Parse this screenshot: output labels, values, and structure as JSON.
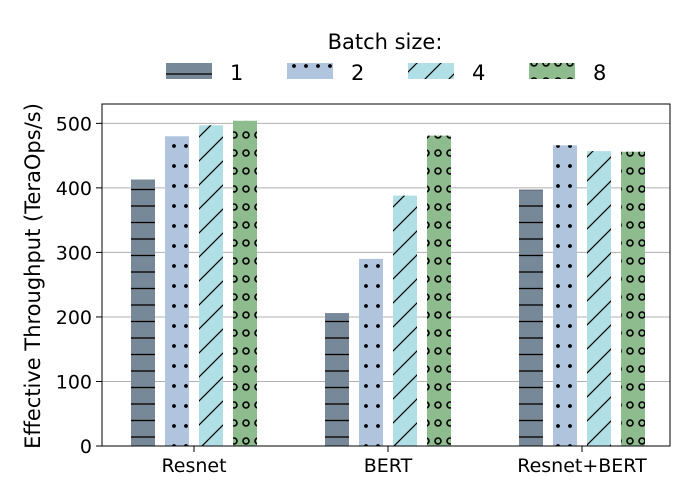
{
  "chart_data": {
    "type": "bar",
    "title": "",
    "xlabel": "",
    "ylabel": "Effective Throughput (TeraOps/s)",
    "categories": [
      "Resnet",
      "BERT",
      "Resnet+BERT"
    ],
    "ylim": [
      0,
      530
    ],
    "yticks": [
      0,
      100,
      200,
      300,
      400,
      500
    ],
    "grid": "horizontal",
    "legend": {
      "title": "Batch size:",
      "placement": "top-center"
    },
    "series": [
      {
        "name": "1",
        "color": "#778899",
        "pattern": "horizontal-lines",
        "values": [
          413,
          206,
          397
        ]
      },
      {
        "name": "2",
        "color": "#b0c4de",
        "pattern": "dots",
        "values": [
          480,
          290,
          466
        ]
      },
      {
        "name": "4",
        "color": "#b0e0e6",
        "pattern": "diagonal-lines",
        "values": [
          497,
          388,
          457
        ]
      },
      {
        "name": "8",
        "color": "#8fbc8f",
        "pattern": "circles",
        "values": [
          504,
          481,
          456
        ]
      }
    ]
  }
}
